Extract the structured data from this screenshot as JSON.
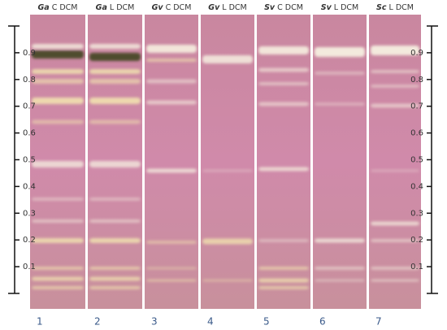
{
  "lanes": [
    {
      "species": "Ga",
      "label": "C DCM",
      "number": 1
    },
    {
      "species": "Ga",
      "label": "L DCM",
      "number": 2
    },
    {
      "species": "Gv",
      "label": "C DCM",
      "number": 3
    },
    {
      "species": "Gv",
      "label": "L DCM",
      "number": 4
    },
    {
      "species": "Sv",
      "label": "C DCM",
      "number": 5
    },
    {
      "species": "Sv",
      "label": "L DCM",
      "number": 6
    },
    {
      "species": "Sc",
      "label": "L DCM",
      "number": 7
    }
  ],
  "axis": {
    "ticks": [
      0.1,
      0.2,
      0.3,
      0.4,
      0.5,
      0.6,
      0.7,
      0.8,
      0.9
    ]
  }
}
